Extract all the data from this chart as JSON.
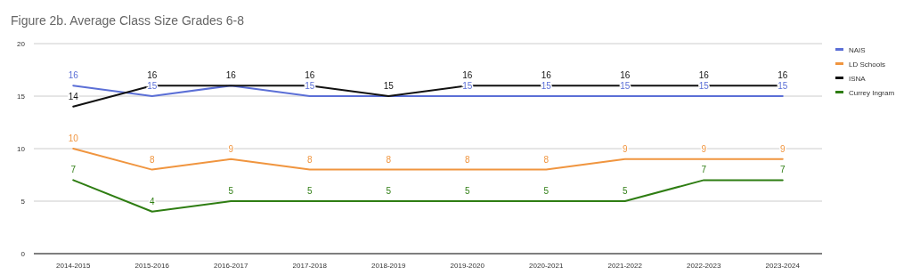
{
  "chart_data": {
    "type": "line",
    "title": "Figure 2b. Average Class Size Grades 6-8",
    "categories": [
      "2014-2015",
      "2015-2016",
      "2016-2017",
      "2017-2018",
      "2018-2019",
      "2019-2020",
      "2020-2021",
      "2021-2022",
      "2022-2023",
      "2023-2024"
    ],
    "series": [
      {
        "name": "NAIS",
        "color": "#5b6fd6",
        "values": [
          16,
          15,
          16,
          15,
          15,
          15,
          15,
          15,
          15,
          15
        ],
        "value_labels": [
          "16",
          "15",
          null,
          "15",
          null,
          "15",
          "15",
          "15",
          "15",
          "15"
        ]
      },
      {
        "name": "LD Schools",
        "color": "#f0953f",
        "values": [
          10,
          8,
          9,
          8,
          8,
          8,
          8,
          9,
          9,
          9
        ],
        "value_labels": [
          "10",
          "8",
          "9",
          "8",
          "8",
          "8",
          "8",
          "9",
          "9",
          "9"
        ]
      },
      {
        "name": "ISNA",
        "color": "#111111",
        "values": [
          14,
          16,
          16,
          16,
          15,
          16,
          16,
          16,
          16,
          16
        ],
        "value_labels": [
          "14",
          "16",
          "16",
          "16",
          "15",
          "16",
          "16",
          "16",
          "16",
          "16"
        ]
      },
      {
        "name": "Currey Ingram",
        "color": "#2e7d12",
        "values": [
          7,
          4,
          5,
          5,
          5,
          5,
          5,
          5,
          7,
          7
        ],
        "value_labels": [
          "7",
          "4",
          "5",
          "5",
          "5",
          "5",
          "5",
          "5",
          "7",
          "7"
        ]
      }
    ],
    "ylim": [
      0,
      20
    ],
    "yticks": [
      0,
      5,
      10,
      15,
      20
    ],
    "grid": "y",
    "legend": "top right",
    "marker": "none",
    "line_style": "solid"
  }
}
